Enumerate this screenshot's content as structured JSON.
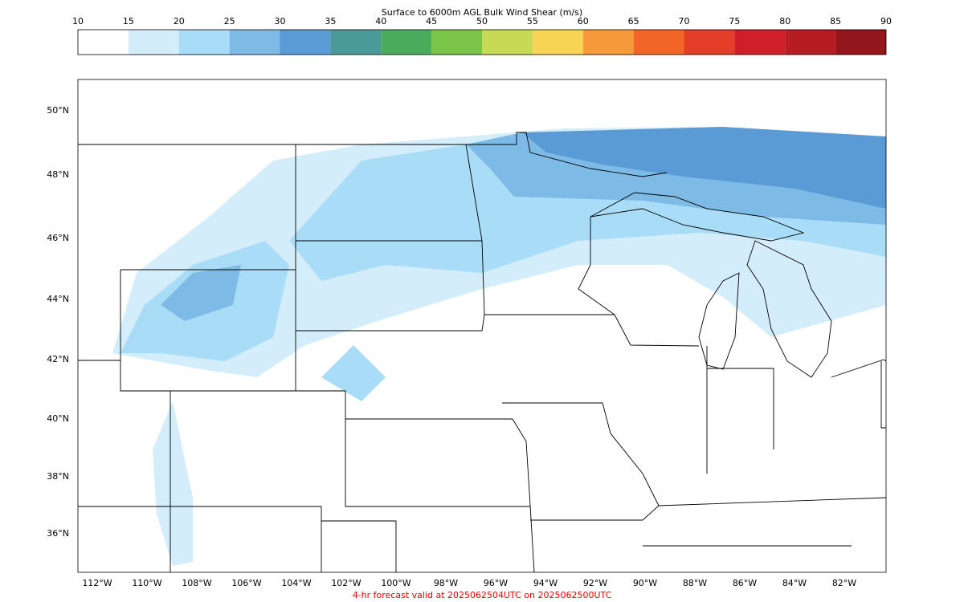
{
  "colorbar": {
    "title": "Surface to 6000m AGL Bulk Wind Shear (m/s)",
    "ticks": [
      10,
      15,
      20,
      25,
      30,
      35,
      40,
      45,
      50,
      55,
      60,
      65,
      70,
      75,
      80,
      85,
      90
    ],
    "colors": [
      "#ffffff",
      "#d4edfa",
      "#a9dcf6",
      "#7dbbe6",
      "#5b9bd5",
      "#4a9a9a",
      "#4bab5c",
      "#7bc44a",
      "#c6da55",
      "#f8d455",
      "#f69a3c",
      "#f36527",
      "#e43d28",
      "#d01f2b",
      "#b71b23",
      "#93161d"
    ]
  },
  "map": {
    "lat_labels": [
      "50°N",
      "48°N",
      "46°N",
      "44°N",
      "42°N",
      "40°N",
      "38°N",
      "36°N"
    ],
    "lon_labels": [
      "112°W",
      "110°W",
      "108°W",
      "106°W",
      "104°W",
      "102°W",
      "100°W",
      "98°W",
      "96°W",
      "94°W",
      "92°W",
      "90°W",
      "88°W",
      "86°W",
      "84°W",
      "82°W"
    ]
  },
  "footer": "4-hr forecast valid at 2025062504UTC on 2025062500UTC"
}
